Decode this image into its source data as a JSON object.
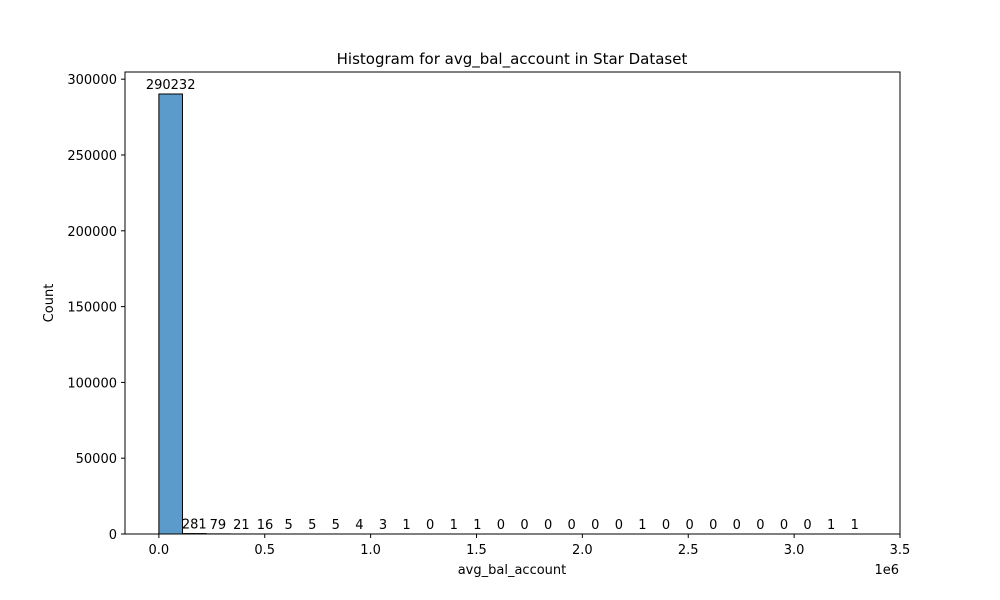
{
  "chart_data": {
    "type": "bar",
    "title": "Histogram for avg_bal_account in Star Dataset",
    "xlabel": "avg_bal_account",
    "ylabel": "Count",
    "x_offset_text": "1e6",
    "bar_color": "#5b9bcb",
    "bar_edge_color": "#000000",
    "x_scale_factor": 1000000,
    "xlim": [
      -160000,
      3500000
    ],
    "ylim": [
      0,
      304743
    ],
    "x_ticks": [
      0.0,
      0.5,
      1.0,
      1.5,
      2.0,
      2.5,
      3.0,
      3.5
    ],
    "x_tick_labels": [
      "0.0",
      "0.5",
      "1.0",
      "1.5",
      "2.0",
      "2.5",
      "3.0",
      "3.5"
    ],
    "y_ticks": [
      0,
      50000,
      100000,
      150000,
      200000,
      250000,
      300000
    ],
    "y_tick_labels": [
      "0",
      "50000",
      "100000",
      "150000",
      "200000",
      "250000",
      "300000"
    ],
    "bin_start": 0,
    "bin_width": 111400,
    "values": [
      290232,
      281,
      79,
      21,
      16,
      5,
      5,
      5,
      4,
      3,
      1,
      0,
      1,
      1,
      0,
      0,
      0,
      0,
      0,
      0,
      1,
      0,
      0,
      0,
      0,
      0,
      0,
      0,
      1,
      1
    ],
    "value_labels": [
      "290232",
      "281",
      "79",
      "21",
      "16",
      "5",
      "5",
      "5",
      "4",
      "3",
      "1",
      "0",
      "1",
      "1",
      "0",
      "0",
      "0",
      "0",
      "0",
      "0",
      "1",
      "0",
      "0",
      "0",
      "0",
      "0",
      "0",
      "0",
      "1",
      "1"
    ],
    "grid": false,
    "legend": "none"
  }
}
